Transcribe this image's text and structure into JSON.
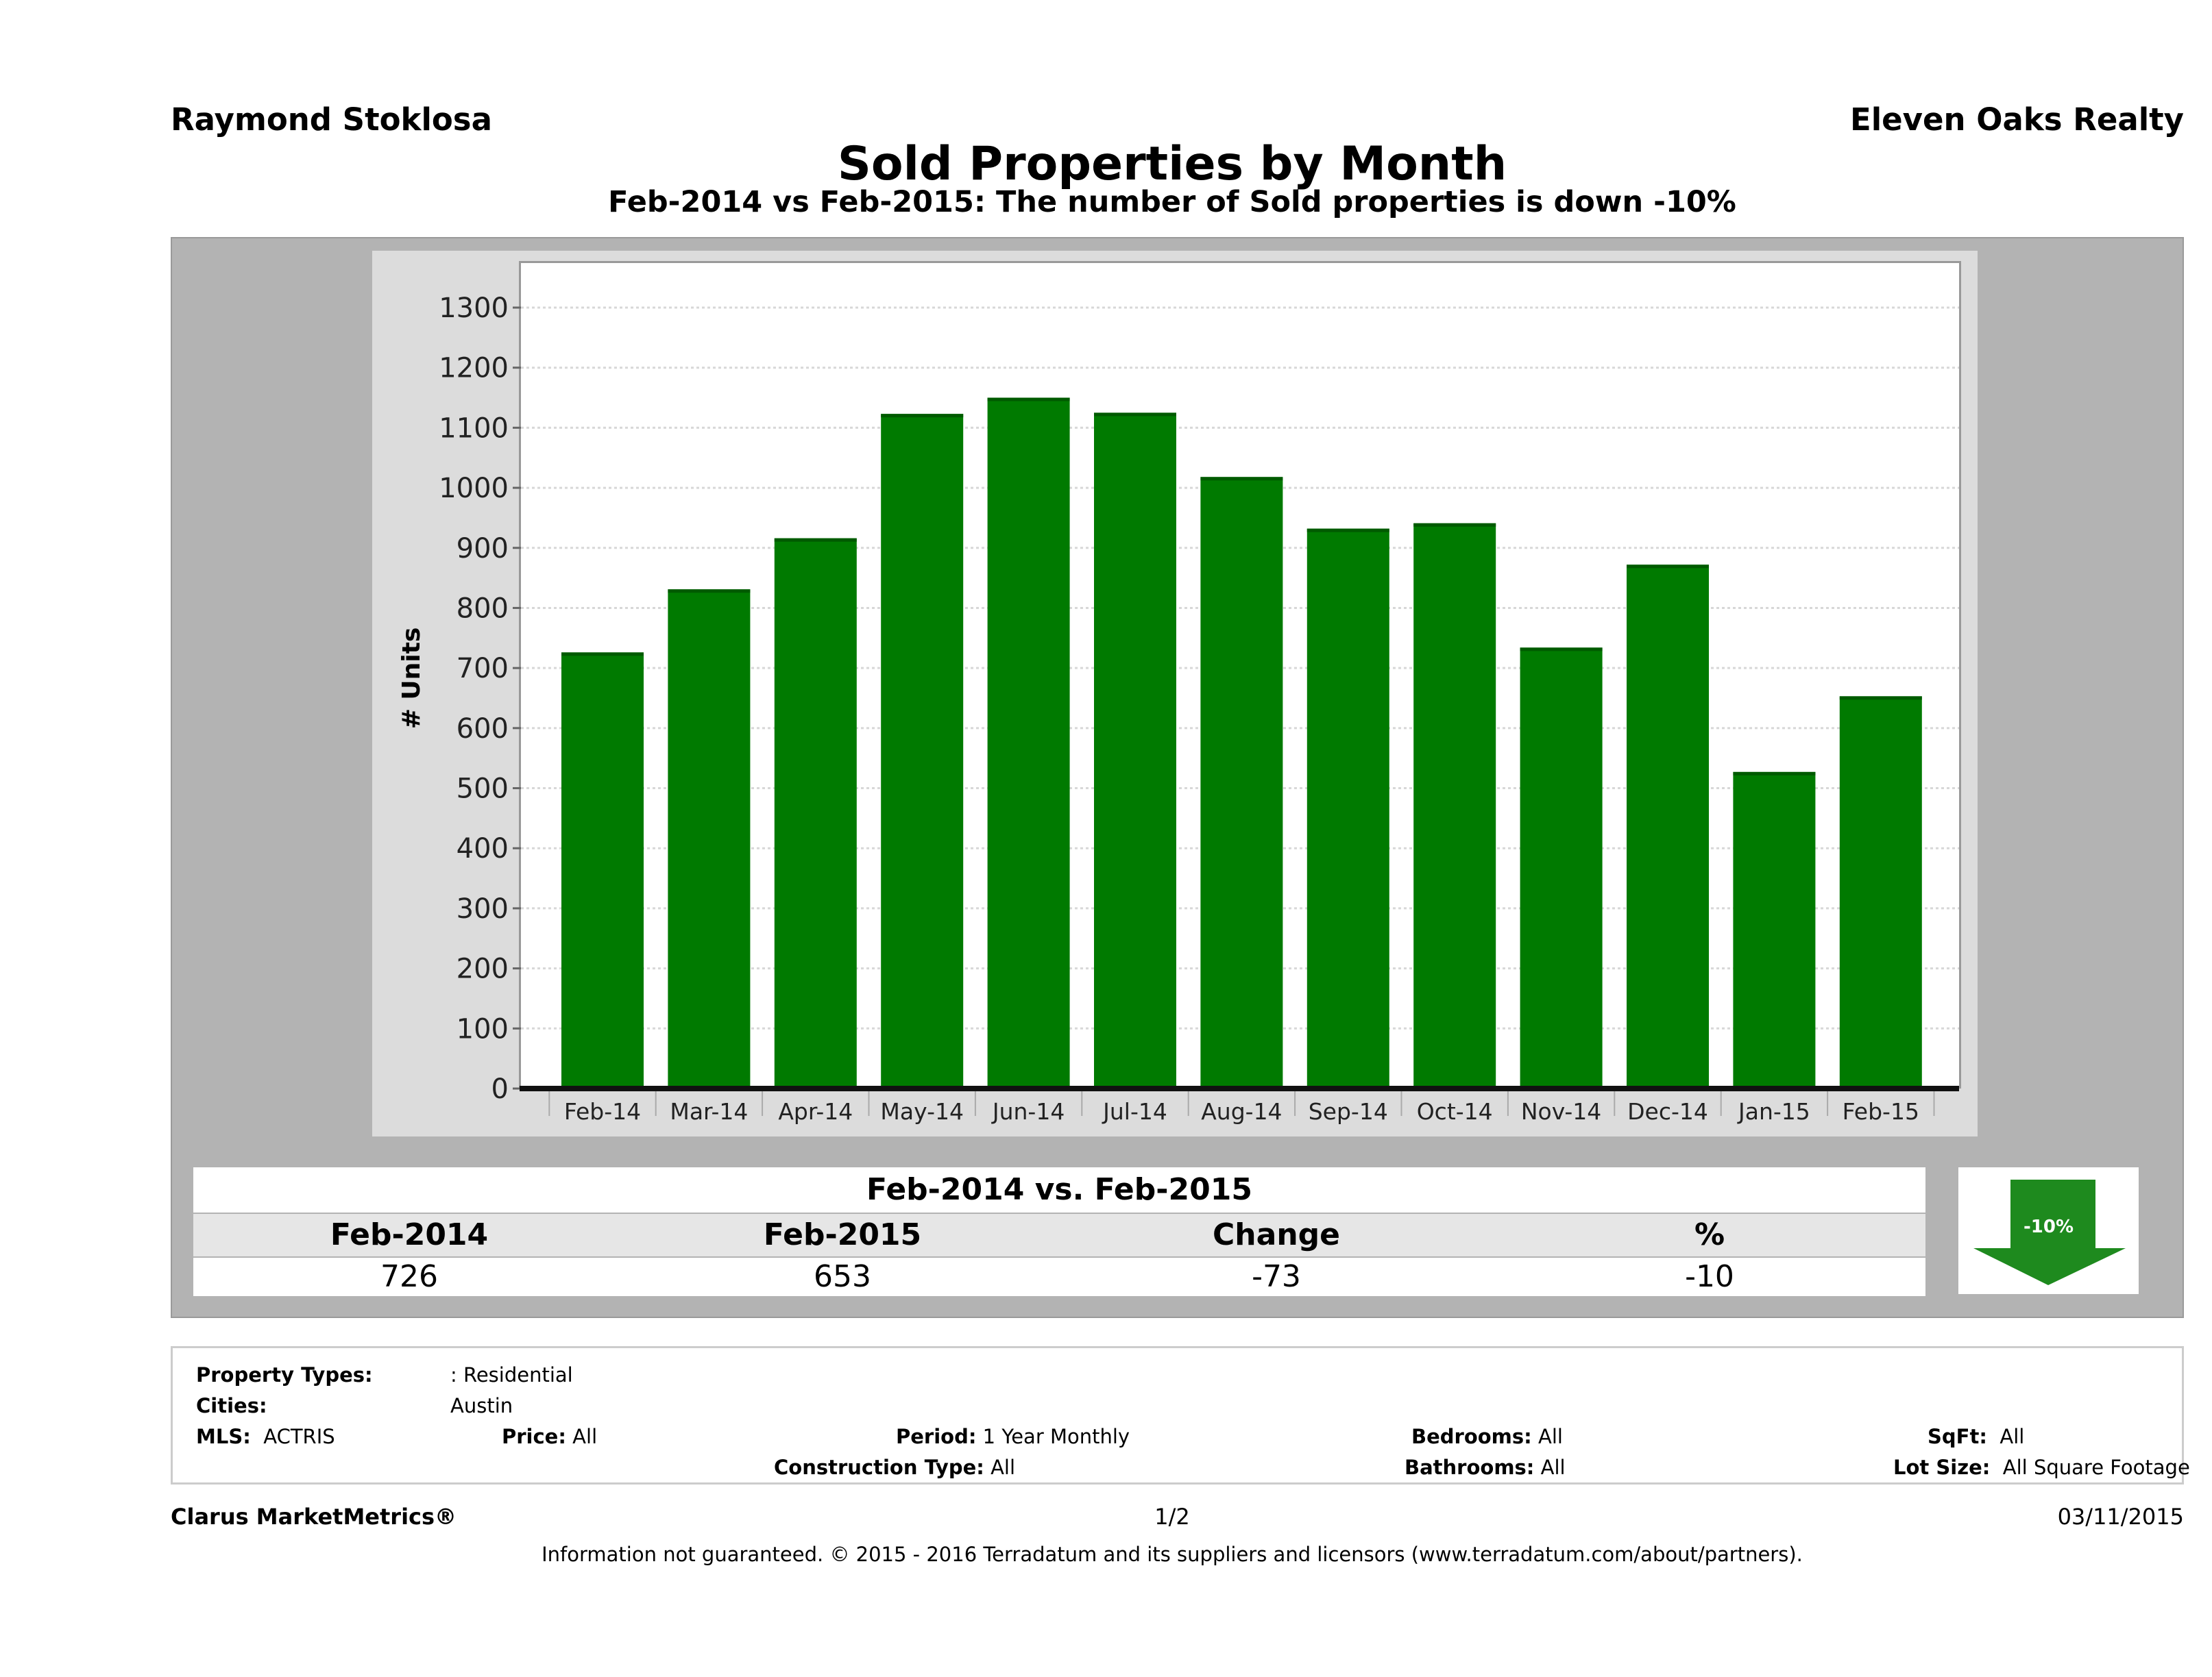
{
  "header": {
    "agent": "Raymond Stoklosa",
    "brokerage": "Eleven Oaks Realty",
    "title": "Sold Properties by Month",
    "subtitle": "Feb-2014 vs Feb-2015: The number of Sold  properties is down -10%"
  },
  "chart_data": {
    "type": "bar",
    "title": "",
    "xlabel": "",
    "ylabel": "# Units",
    "ylim": [
      0,
      1380
    ],
    "yticks": [
      0,
      100,
      200,
      300,
      400,
      500,
      600,
      700,
      800,
      900,
      1000,
      1100,
      1200,
      1300
    ],
    "grid": true,
    "bar_color": "#007a00",
    "categories": [
      "Feb-14",
      "Mar-14",
      "Apr-14",
      "May-14",
      "Jun-14",
      "Jul-14",
      "Aug-14",
      "Sep-14",
      "Oct-14",
      "Nov-14",
      "Dec-14",
      "Jan-15",
      "Feb-15"
    ],
    "values": [
      726,
      831,
      916,
      1123,
      1150,
      1125,
      1018,
      932,
      941,
      734,
      872,
      527,
      653
    ]
  },
  "summary": {
    "title": "Feb-2014 vs. Feb-2015",
    "headers": [
      "Feb-2014",
      "Feb-2015",
      "Change",
      "%"
    ],
    "values": [
      "726",
      "653",
      "-73",
      "-10"
    ],
    "badge": "-10%",
    "badge_direction": "down",
    "badge_color": "#1e8a1e"
  },
  "filters": {
    "property_types_label": "Property Types:",
    "property_types": ": Residential",
    "cities_label": "Cities:",
    "cities": "Austin",
    "mls_label": "MLS:",
    "mls": "ACTRIS",
    "price_label": "Price:",
    "price": "All",
    "period_label": "Period:",
    "period": "1 Year Monthly",
    "bedrooms_label": "Bedrooms:",
    "bedrooms": "All",
    "sqft_label": "SqFt:",
    "sqft": "All",
    "construction_label": "Construction Type:",
    "construction": "All",
    "bathrooms_label": "Bathrooms:",
    "bathrooms": "All",
    "lotsize_label": "Lot Size:",
    "lotsize": "All Square Footage"
  },
  "footer": {
    "brand": "Clarus MarketMetrics®",
    "page": "1/2",
    "date": "03/11/2015",
    "disclaimer": "Information not guaranteed. © 2015 - 2016 Terradatum and its suppliers and licensors (www.terradatum.com/about/partners)."
  }
}
